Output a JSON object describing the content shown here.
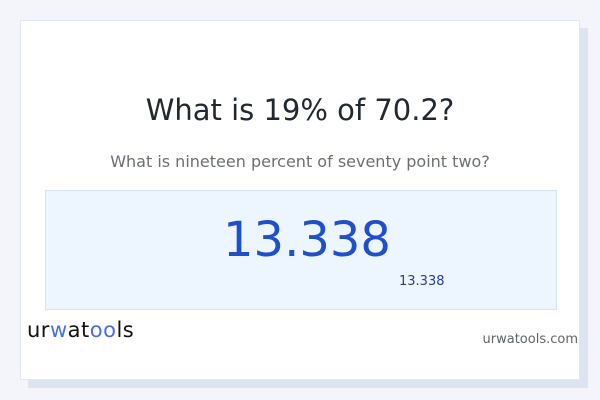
{
  "title": "What is 19% of 70.2?",
  "subtitle": "What is nineteen percent of seventy point two?",
  "result": {
    "value": "13.338",
    "secondary": "13.338"
  },
  "footer": {
    "logo": "urwatools",
    "site": "urwatools.com"
  },
  "colors": {
    "accent": "#1f4fc9",
    "result_bg": "#edf5ff",
    "page_bg": "#f3f5fb"
  }
}
